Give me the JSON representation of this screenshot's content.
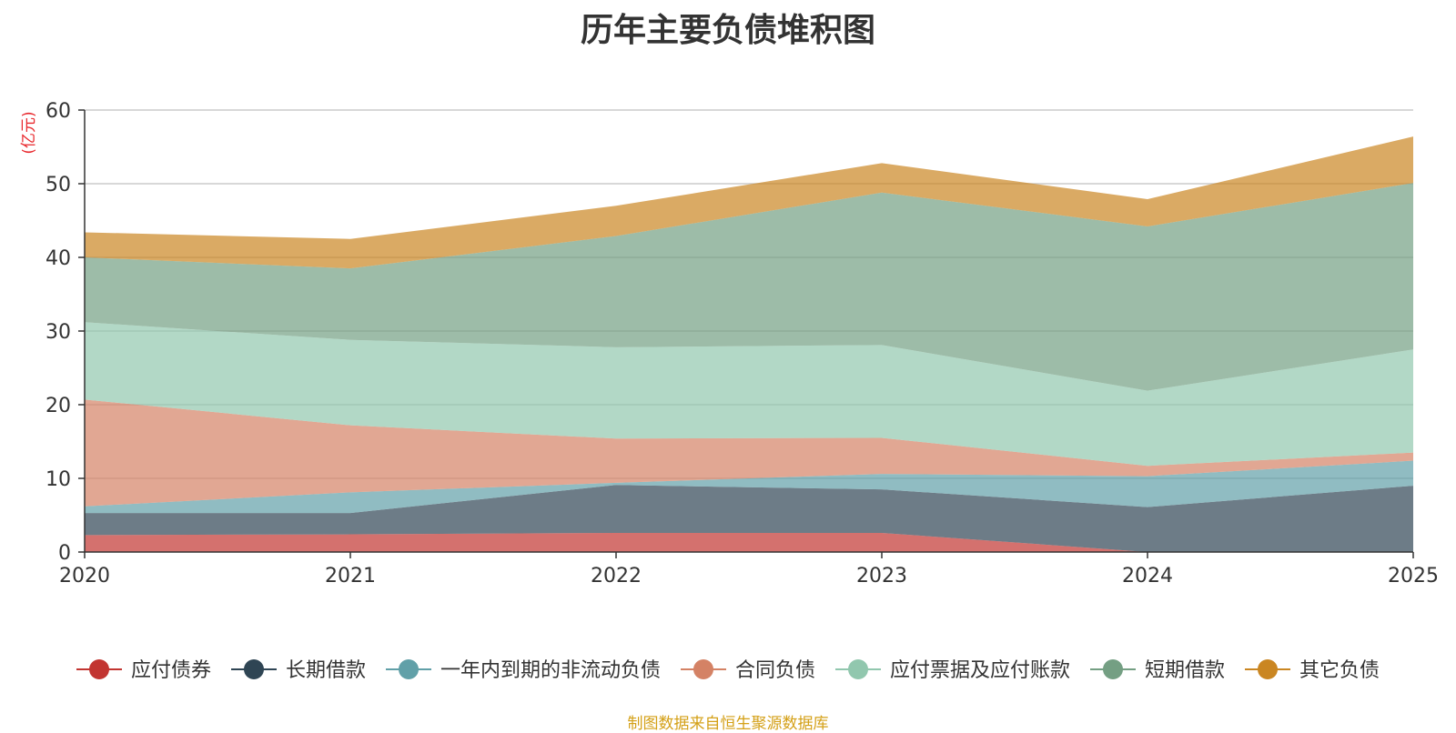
{
  "chart_data": {
    "type": "area",
    "stacked": true,
    "title": "历年主要负债堆积图",
    "unit_label": "(亿元)",
    "x": [
      "2020",
      "2021",
      "2022",
      "2023",
      "2024",
      "2025"
    ],
    "ylim": [
      0,
      60
    ],
    "yticks": [
      0,
      10,
      20,
      30,
      40,
      50,
      60
    ],
    "grid": true,
    "legend_position": "bottom",
    "series": [
      {
        "name": "应付债券",
        "color": "#c23531",
        "values": [
          2.3,
          2.4,
          2.6,
          2.6,
          0.0,
          0.0
        ]
      },
      {
        "name": "长期借款",
        "color": "#2f4554",
        "values": [
          3.0,
          2.9,
          6.5,
          5.9,
          6.1,
          9.0
        ]
      },
      {
        "name": "一年内到期的非流动负债",
        "color": "#61a0a8",
        "values": [
          0.9,
          2.8,
          0.3,
          2.1,
          4.2,
          3.4
        ]
      },
      {
        "name": "合同负债",
        "color": "#d48265",
        "values": [
          14.5,
          9.1,
          6.0,
          4.9,
          1.4,
          1.1
        ]
      },
      {
        "name": "应付票据及应付账款",
        "color": "#91c7ae",
        "values": [
          10.5,
          11.6,
          12.4,
          12.6,
          10.2,
          14.0
        ]
      },
      {
        "name": "短期借款",
        "color": "#749f83",
        "values": [
          8.8,
          9.7,
          15.1,
          20.7,
          22.3,
          22.6
        ]
      },
      {
        "name": "其它负债",
        "color": "#ca8622",
        "values": [
          3.4,
          4.0,
          4.1,
          4.0,
          3.7,
          6.3
        ]
      }
    ]
  },
  "source": {
    "text": "制图数据来自恒生聚源数据库",
    "color": "#d4a017"
  }
}
